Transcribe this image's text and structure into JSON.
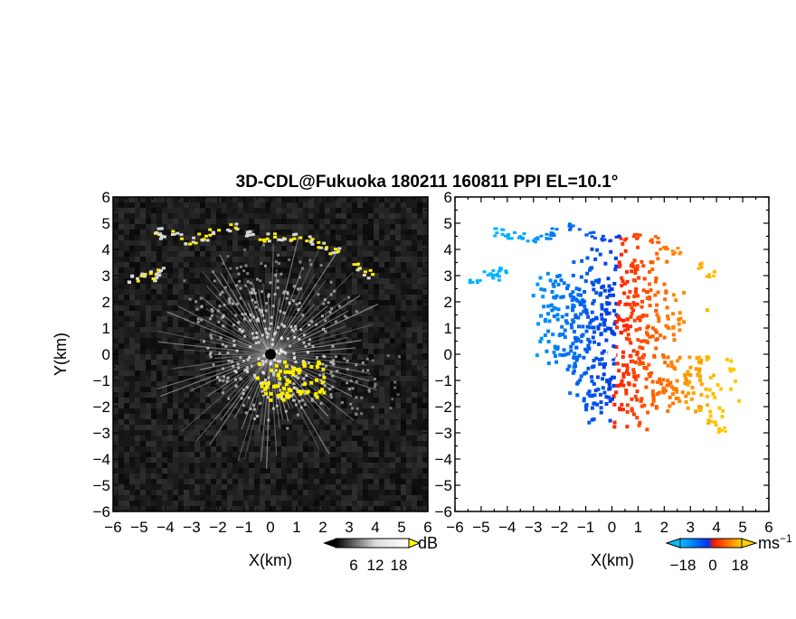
{
  "title": "3D-CDL@Fukuoka 180211 160811 PPI EL=10.1°",
  "chart_data": [
    {
      "type": "heatmap",
      "name": "left-panel",
      "variable_unit": "dB",
      "xlabel": "X(km)",
      "ylabel": "Y(km)",
      "xlim": [
        -6,
        6
      ],
      "ylim": [
        -6,
        6
      ],
      "xticks": [
        "−6",
        "−5",
        "−4",
        "−3",
        "−2",
        "−1",
        "0",
        "1",
        "2",
        "3",
        "4",
        "5",
        "6"
      ],
      "yticks": [
        "6",
        "5",
        "4",
        "3",
        "2",
        "1",
        "0",
        "−1",
        "−2",
        "−3",
        "−4",
        "−5",
        "−6"
      ],
      "colorbar": {
        "ticks": [
          "6",
          "12",
          "18"
        ],
        "unit": "dB",
        "colors": [
          "#000000",
          "#ffffff",
          "#ffff00"
        ]
      },
      "background_color": "#1a1a1a"
    },
    {
      "type": "heatmap",
      "name": "right-panel",
      "variable_unit": "ms⁻¹",
      "xlabel": "X(km)",
      "ylabel": "",
      "xlim": [
        -6,
        6
      ],
      "ylim": [
        -6,
        6
      ],
      "xticks": [
        "−6",
        "−5",
        "−4",
        "−3",
        "−2",
        "−1",
        "0",
        "1",
        "2",
        "3",
        "4",
        "5",
        "6"
      ],
      "yticks": [
        "6",
        "5",
        "4",
        "3",
        "2",
        "1",
        "0",
        "−1",
        "−2",
        "−3",
        "−4",
        "−5",
        "−6"
      ],
      "colorbar": {
        "ticks": [
          "−18",
          "0",
          "18"
        ],
        "unit": "ms",
        "unit_exp": "−1",
        "colors": [
          "#00bfff",
          "#0033ee",
          "#ff1a00",
          "#ffd000"
        ]
      },
      "background_color": "#ffffff"
    }
  ]
}
